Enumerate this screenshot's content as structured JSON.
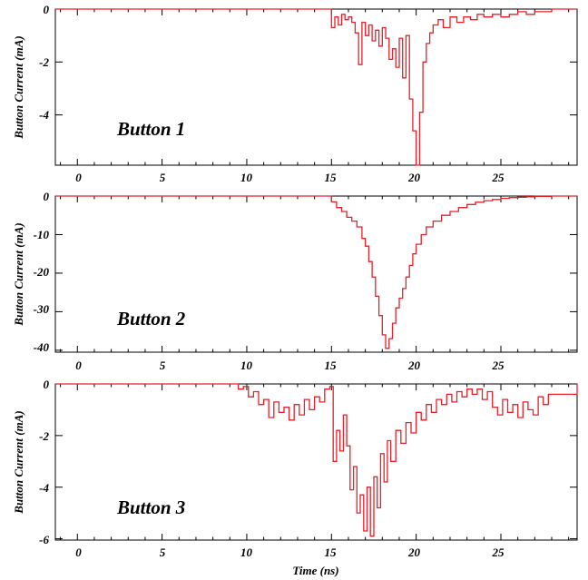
{
  "chart_data": [
    {
      "type": "line",
      "title": "Button 1",
      "ylabel": "Button Current (mA)",
      "xlabel": "",
      "xlim": [
        -1.3,
        29.5
      ],
      "ylim": [
        -5.9,
        0
      ],
      "xticks": [
        "0",
        "5",
        "10",
        "15",
        "20",
        "25"
      ],
      "yticks": [
        "0",
        "-2",
        "-4"
      ],
      "series": [
        {
          "color": "#e8202a",
          "x": [
            -1.3,
            14.9,
            15.0,
            15.2,
            15.4,
            15.6,
            15.8,
            16.0,
            16.2,
            16.4,
            16.6,
            16.8,
            17.0,
            17.2,
            17.4,
            17.6,
            17.8,
            18.0,
            18.2,
            18.4,
            18.6,
            18.8,
            19.0,
            19.2,
            19.4,
            19.6,
            19.8,
            20.0,
            20.2,
            20.4,
            20.6,
            20.8,
            21.0,
            21.3,
            21.6,
            22.0,
            22.4,
            22.8,
            23.2,
            23.6,
            24.0,
            24.5,
            25.0,
            25.5,
            26.0,
            26.5,
            27.0,
            27.5,
            28.0,
            29.5
          ],
          "values": [
            0,
            0,
            -0.7,
            -0.3,
            -0.6,
            -0.2,
            -0.4,
            -0.3,
            -0.5,
            -0.9,
            -2.1,
            -0.5,
            -1.0,
            -0.6,
            -1.2,
            -0.8,
            -1.4,
            -0.7,
            -1.1,
            -1.9,
            -1.5,
            -2.2,
            -1.1,
            -2.6,
            -1.0,
            -3.4,
            -4.6,
            -5.9,
            -3.9,
            -2.0,
            -1.3,
            -0.9,
            -0.6,
            -0.4,
            -0.7,
            -0.3,
            -0.5,
            -0.3,
            -0.4,
            -0.2,
            -0.3,
            -0.2,
            -0.3,
            -0.2,
            -0.1,
            -0.2,
            -0.1,
            -0.1,
            0,
            0
          ]
        }
      ]
    },
    {
      "type": "line",
      "title": "Button 2",
      "ylabel": "Button Current (mA)",
      "xlabel": "",
      "xlim": [
        -1.3,
        29.5
      ],
      "ylim": [
        -40.5,
        0
      ],
      "xticks": [
        "0",
        "5",
        "10",
        "15",
        "20",
        "25"
      ],
      "yticks": [
        "0",
        "-10",
        "-20",
        "-30",
        "-40"
      ],
      "series": [
        {
          "color": "#e8202a",
          "x": [
            -1.3,
            14.9,
            15.0,
            15.3,
            15.6,
            15.9,
            16.2,
            16.5,
            16.8,
            17.0,
            17.2,
            17.4,
            17.6,
            17.8,
            18.0,
            18.2,
            18.4,
            18.6,
            18.8,
            19.0,
            19.2,
            19.4,
            19.6,
            19.8,
            20.0,
            20.3,
            20.6,
            21.0,
            21.5,
            22.0,
            22.5,
            23.0,
            23.5,
            24.0,
            24.5,
            25.0,
            25.5,
            26.0,
            26.5,
            27.0,
            27.5,
            28.0,
            29.5
          ],
          "values": [
            0,
            0,
            -1.5,
            -3.0,
            -4.0,
            -5.5,
            -6.5,
            -8.0,
            -11.0,
            -13.0,
            -17.0,
            -21.0,
            -26.0,
            -31.0,
            -36.0,
            -39.5,
            -37.0,
            -33.0,
            -29.0,
            -26.5,
            -24.0,
            -21.0,
            -18.0,
            -15.0,
            -12.5,
            -10.0,
            -8.0,
            -6.5,
            -5.0,
            -4.0,
            -3.0,
            -2.2,
            -1.6,
            -1.2,
            -0.9,
            -0.6,
            -0.4,
            -0.3,
            -0.2,
            -0.1,
            -0.1,
            0,
            0
          ]
        }
      ]
    },
    {
      "type": "line",
      "title": "Button 3",
      "ylabel": "Button Current (mA)",
      "xlabel": "Time (ns)",
      "xlim": [
        -1.3,
        29.5
      ],
      "ylim": [
        -6.05,
        0
      ],
      "xticks": [
        "0",
        "5",
        "10",
        "15",
        "20",
        "25"
      ],
      "yticks": [
        "0",
        "-2",
        "-4",
        "-6"
      ],
      "series": [
        {
          "color": "#e8202a",
          "x": [
            -1.3,
            9.3,
            9.5,
            9.8,
            10.1,
            10.4,
            10.7,
            11.0,
            11.3,
            11.6,
            11.9,
            12.2,
            12.5,
            12.8,
            13.1,
            13.4,
            13.7,
            14.0,
            14.3,
            14.6,
            14.9,
            15.1,
            15.3,
            15.5,
            15.7,
            15.9,
            16.1,
            16.3,
            16.5,
            16.7,
            16.9,
            17.1,
            17.3,
            17.5,
            17.7,
            17.9,
            18.1,
            18.3,
            18.5,
            18.8,
            19.1,
            19.4,
            19.7,
            20.0,
            20.3,
            20.6,
            20.9,
            21.2,
            21.5,
            21.8,
            22.1,
            22.4,
            22.7,
            23.0,
            23.3,
            23.6,
            23.9,
            24.2,
            24.5,
            24.8,
            25.1,
            25.4,
            25.7,
            26.0,
            26.3,
            26.6,
            26.9,
            27.2,
            27.5,
            27.8,
            29.5
          ],
          "values": [
            0,
            0,
            -0.2,
            -0.1,
            -0.5,
            -0.3,
            -0.8,
            -0.6,
            -1.3,
            -0.7,
            -1.1,
            -0.9,
            -1.4,
            -0.8,
            -1.2,
            -0.6,
            -1.0,
            -0.5,
            -0.7,
            -0.2,
            -0.1,
            -3.0,
            -1.8,
            -2.6,
            -1.2,
            -2.4,
            -4.1,
            -3.2,
            -5.0,
            -4.3,
            -5.7,
            -4.0,
            -5.9,
            -3.6,
            -4.8,
            -2.7,
            -3.8,
            -2.2,
            -3.0,
            -1.8,
            -2.3,
            -1.5,
            -1.9,
            -1.1,
            -1.4,
            -0.8,
            -1.1,
            -0.6,
            -0.8,
            -0.4,
            -0.7,
            -0.3,
            -0.5,
            -0.2,
            -0.4,
            -0.2,
            -0.6,
            -0.3,
            -0.9,
            -1.2,
            -0.6,
            -1.1,
            -0.8,
            -1.3,
            -0.7,
            -1.0,
            -1.2,
            -0.5,
            -0.8,
            -0.4,
            0
          ]
        }
      ]
    }
  ]
}
